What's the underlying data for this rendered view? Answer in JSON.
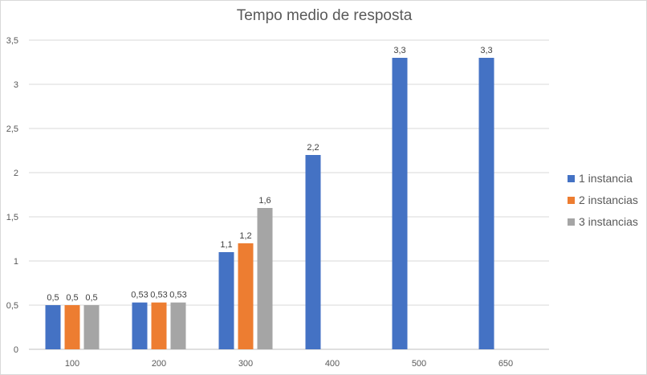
{
  "chart_data": {
    "type": "bar",
    "title": "Tempo medio de resposta",
    "xlabel": "",
    "ylabel": "",
    "ylim": [
      0,
      3.5
    ],
    "yticks": [
      {
        "value": 0,
        "label": "0"
      },
      {
        "value": 0.5,
        "label": "0,5"
      },
      {
        "value": 1,
        "label": "1"
      },
      {
        "value": 1.5,
        "label": "1,5"
      },
      {
        "value": 2,
        "label": "2"
      },
      {
        "value": 2.5,
        "label": "2,5"
      },
      {
        "value": 3,
        "label": "3"
      },
      {
        "value": 3.5,
        "label": "3,5"
      }
    ],
    "categories": [
      "100",
      "200",
      "300",
      "400",
      "500",
      "650"
    ],
    "series": [
      {
        "name": "1 instancia",
        "color": "#4472c4",
        "values": [
          0.5,
          0.53,
          1.1,
          2.2,
          3.3,
          3.3
        ],
        "labels": [
          "0,5",
          "0,53",
          "1,1",
          "2,2",
          "3,3",
          "3,3"
        ]
      },
      {
        "name": "2 instancias",
        "color": "#ed7d31",
        "values": [
          0.5,
          0.53,
          1.2,
          null,
          null,
          null
        ],
        "labels": [
          "0,5",
          "0,53",
          "1,2",
          "",
          "",
          ""
        ]
      },
      {
        "name": "3 instancias",
        "color": "#a5a5a5",
        "values": [
          0.5,
          0.53,
          1.6,
          null,
          null,
          null
        ],
        "labels": [
          "0,5",
          "0,53",
          "1,6",
          "",
          "",
          ""
        ]
      }
    ],
    "grid": true,
    "legend_position": "right"
  }
}
